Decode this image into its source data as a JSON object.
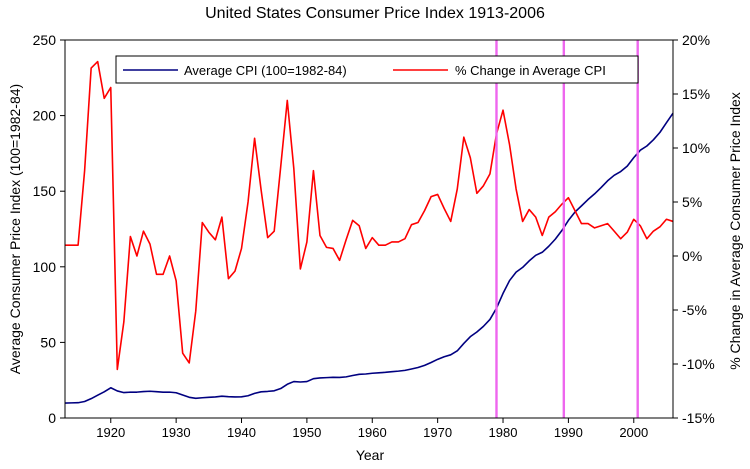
{
  "chart_data": {
    "type": "line",
    "title": "United States Consumer Price Index 1913-2006",
    "xlabel": "Year",
    "ylabel": "Average Consumer Price Index (100=1982-84)",
    "y2label": "% Change in Average Consumer Price Index",
    "xlim": [
      1913,
      2006
    ],
    "ylim": [
      0,
      250
    ],
    "y2lim": [
      -15,
      20
    ],
    "x_ticks": [
      1920,
      1930,
      1940,
      1950,
      1960,
      1970,
      1980,
      1990,
      2000
    ],
    "x_tick_labels": [
      "1920",
      "1930",
      "1940",
      "1950",
      "1960",
      "1970",
      "1980",
      "1990",
      "2000"
    ],
    "y_ticks": [
      0,
      50,
      100,
      150,
      200,
      250
    ],
    "y_tick_labels": [
      "0",
      "50",
      "100",
      "150",
      "200",
      "250"
    ],
    "y2_ticks": [
      -15,
      -10,
      -5,
      0,
      5,
      10,
      15,
      20
    ],
    "y2_tick_labels": [
      "-15%",
      "-10%",
      "-5%",
      "0%",
      "5%",
      "10%",
      "15%",
      "20%"
    ],
    "legend_position": "top",
    "vertical_markers": [
      1979,
      1989.3,
      2000.6
    ],
    "colors": {
      "cpi": "#000080",
      "pct": "#ff0000",
      "markers": "#ee66ee",
      "frame": "#000000"
    },
    "series": [
      {
        "name": "Average CPI (100=1982-84)",
        "axis": "left",
        "x": [
          1913,
          1914,
          1915,
          1916,
          1917,
          1918,
          1919,
          1920,
          1921,
          1922,
          1923,
          1924,
          1925,
          1926,
          1927,
          1928,
          1929,
          1930,
          1931,
          1932,
          1933,
          1934,
          1935,
          1936,
          1937,
          1938,
          1939,
          1940,
          1941,
          1942,
          1943,
          1944,
          1945,
          1946,
          1947,
          1948,
          1949,
          1950,
          1951,
          1952,
          1953,
          1954,
          1955,
          1956,
          1957,
          1958,
          1959,
          1960,
          1961,
          1962,
          1963,
          1964,
          1965,
          1966,
          1967,
          1968,
          1969,
          1970,
          1971,
          1972,
          1973,
          1974,
          1975,
          1976,
          1977,
          1978,
          1979,
          1980,
          1981,
          1982,
          1983,
          1984,
          1985,
          1986,
          1987,
          1988,
          1989,
          1990,
          1991,
          1992,
          1993,
          1994,
          1995,
          1996,
          1997,
          1998,
          1999,
          2000,
          2001,
          2002,
          2003,
          2004,
          2005,
          2006
        ],
        "values": [
          9.9,
          10.0,
          10.1,
          10.9,
          12.8,
          15.1,
          17.3,
          20.0,
          17.9,
          16.8,
          17.1,
          17.1,
          17.5,
          17.7,
          17.4,
          17.1,
          17.1,
          16.7,
          15.2,
          13.7,
          13.0,
          13.4,
          13.7,
          13.9,
          14.4,
          14.1,
          13.9,
          14.0,
          14.7,
          16.3,
          17.3,
          17.6,
          18.0,
          19.5,
          22.3,
          24.1,
          23.8,
          24.1,
          26.0,
          26.5,
          26.7,
          26.9,
          26.8,
          27.2,
          28.1,
          28.9,
          29.1,
          29.6,
          29.9,
          30.2,
          30.6,
          31.0,
          31.5,
          32.4,
          33.4,
          34.8,
          36.7,
          38.8,
          40.5,
          41.8,
          44.4,
          49.3,
          53.8,
          56.9,
          60.6,
          65.2,
          72.6,
          82.4,
          90.9,
          96.5,
          99.6,
          103.9,
          107.6,
          109.6,
          113.6,
          118.3,
          124.0,
          130.7,
          136.2,
          140.3,
          144.5,
          148.2,
          152.4,
          156.9,
          160.5,
          163.0,
          166.6,
          172.2,
          177.1,
          179.9,
          184.0,
          188.9,
          195.3,
          201.6
        ]
      },
      {
        "name": "% Change in Average CPI",
        "axis": "right",
        "x": [
          1913,
          1914,
          1915,
          1916,
          1917,
          1918,
          1919,
          1920,
          1921,
          1922,
          1923,
          1924,
          1925,
          1926,
          1927,
          1928,
          1929,
          1930,
          1931,
          1932,
          1933,
          1934,
          1935,
          1936,
          1937,
          1938,
          1939,
          1940,
          1941,
          1942,
          1943,
          1944,
          1945,
          1946,
          1947,
          1948,
          1949,
          1950,
          1951,
          1952,
          1953,
          1954,
          1955,
          1956,
          1957,
          1958,
          1959,
          1960,
          1961,
          1962,
          1963,
          1964,
          1965,
          1966,
          1967,
          1968,
          1969,
          1970,
          1971,
          1972,
          1973,
          1974,
          1975,
          1976,
          1977,
          1978,
          1979,
          1980,
          1981,
          1982,
          1983,
          1984,
          1985,
          1986,
          1987,
          1988,
          1989,
          1990,
          1991,
          1992,
          1993,
          1994,
          1995,
          1996,
          1997,
          1998,
          1999,
          2000,
          2001,
          2002,
          2003,
          2004,
          2005,
          2006
        ],
        "values": [
          1.0,
          1.0,
          1.0,
          7.9,
          17.4,
          18.0,
          14.6,
          15.6,
          -10.5,
          -6.1,
          1.8,
          0.0,
          2.3,
          1.1,
          -1.7,
          -1.7,
          0.0,
          -2.3,
          -9.0,
          -9.9,
          -5.1,
          3.1,
          2.2,
          1.5,
          3.6,
          -2.1,
          -1.4,
          0.7,
          5.0,
          10.9,
          6.1,
          1.7,
          2.3,
          8.3,
          14.4,
          8.1,
          -1.2,
          1.3,
          7.9,
          1.9,
          0.8,
          0.7,
          -0.4,
          1.5,
          3.3,
          2.8,
          0.7,
          1.7,
          1.0,
          1.0,
          1.3,
          1.3,
          1.6,
          2.9,
          3.1,
          4.2,
          5.5,
          5.7,
          4.4,
          3.2,
          6.2,
          11.0,
          9.1,
          5.8,
          6.5,
          7.6,
          11.3,
          13.5,
          10.3,
          6.2,
          3.2,
          4.3,
          3.6,
          1.9,
          3.6,
          4.1,
          4.8,
          5.4,
          4.2,
          3.0,
          3.0,
          2.6,
          2.8,
          3.0,
          2.3,
          1.6,
          2.2,
          3.4,
          2.8,
          1.6,
          2.3,
          2.7,
          3.4,
          3.2
        ]
      }
    ]
  }
}
